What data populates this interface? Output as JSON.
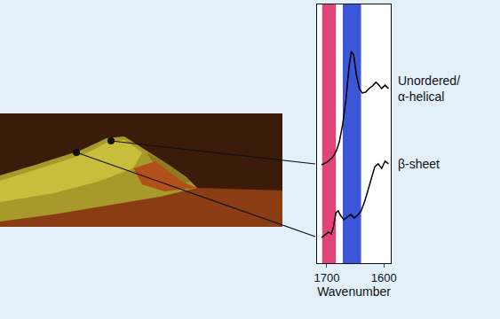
{
  "chart_data": {
    "type": "line",
    "xlabel": "Wavenumber",
    "xlim": [
      1717,
      1588
    ],
    "xticks": [
      1700,
      1600
    ],
    "ylim": [
      0,
      100
    ],
    "tick_labels": "x",
    "grid": false,
    "bands": [
      {
        "range": [
          1708,
          1684
        ],
        "color": "#e3437b"
      },
      {
        "range": [
          1672,
          1640
        ],
        "color": "#3d56d8"
      }
    ],
    "series": [
      {
        "name": "Unordered/α-helical",
        "color": "#000000",
        "x": [
          1709,
          1700,
          1690,
          1683,
          1678,
          1672,
          1666,
          1661,
          1657,
          1653,
          1648,
          1643,
          1638,
          1632,
          1626,
          1620,
          1614,
          1610,
          1604,
          1598,
          1592
        ],
        "values": [
          38.0,
          39.0,
          40.8,
          43.5,
          46.9,
          53.8,
          64.0,
          76.0,
          81.8,
          80.5,
          72.6,
          67.5,
          65.8,
          66.1,
          67.5,
          68.5,
          69.9,
          69.2,
          67.5,
          68.8,
          67.5
        ]
      },
      {
        "name": "β-sheet",
        "color": "#000000",
        "x": [
          1709,
          1703,
          1697,
          1692,
          1688,
          1684,
          1680,
          1676,
          1670,
          1664,
          1658,
          1652,
          1646,
          1640,
          1634,
          1628,
          1622,
          1616,
          1610,
          1604,
          1598,
          1592
        ],
        "values": [
          9.9,
          11.0,
          12.0,
          11.3,
          14.4,
          19.5,
          20.2,
          18.5,
          16.8,
          17.8,
          18.8,
          17.5,
          18.5,
          20.2,
          23.6,
          28.1,
          33.2,
          37.3,
          38.4,
          36.6,
          39.4,
          38.4
        ]
      }
    ]
  }
}
